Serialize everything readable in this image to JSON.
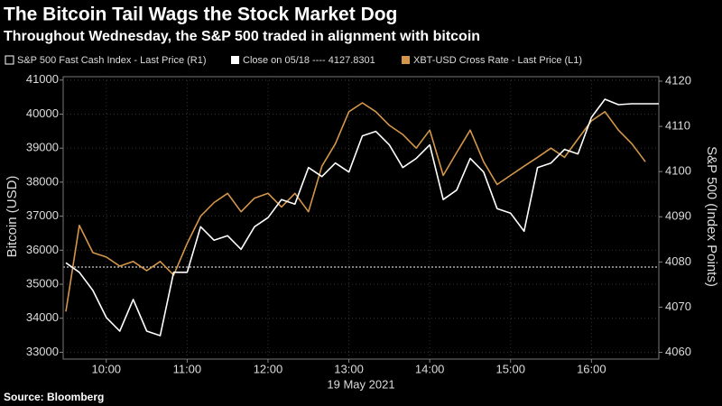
{
  "chart_data": {
    "type": "line",
    "title": "The Bitcoin Tail Wags the Stock Market Dog",
    "subtitle": "Throughout Wednesday, the S&P 500 traded in alignment with bitcoin",
    "source": "Source: Bloomberg",
    "legend_note": "Close on 05/18 ---- 4127.8301",
    "xlabel": "19 May 2021",
    "ylabel": "Bitcoin (USD)",
    "y2label": "S&P 500 (Index Points)",
    "grid": true,
    "xlim": [
      "09:28",
      "16:50"
    ],
    "xticks": [
      "10:00",
      "11:00",
      "12:00",
      "13:00",
      "14:00",
      "15:00",
      "16:00"
    ],
    "ylim": [
      32800,
      41100
    ],
    "yticks": [
      33000,
      34000,
      35000,
      36000,
      37000,
      38000,
      39000,
      40000,
      41000
    ],
    "y2lim": [
      4058.5,
      4121
    ],
    "y2ticks": [
      4060,
      4070,
      4080,
      4090,
      4100,
      4110,
      4120
    ],
    "x": [
      "09:30",
      "09:40",
      "09:50",
      "10:00",
      "10:10",
      "10:20",
      "10:30",
      "10:40",
      "10:50",
      "11:00",
      "11:10",
      "11:20",
      "11:30",
      "11:40",
      "11:50",
      "12:00",
      "12:10",
      "12:20",
      "12:30",
      "12:40",
      "12:50",
      "13:00",
      "13:10",
      "13:20",
      "13:30",
      "13:40",
      "13:50",
      "14:00",
      "14:10",
      "14:20",
      "14:30",
      "14:40",
      "14:50",
      "15:00",
      "15:10",
      "15:20",
      "15:30",
      "15:40",
      "15:50",
      "16:00",
      "16:10",
      "16:20",
      "16:30",
      "16:40",
      "16:50"
    ],
    "series": [
      {
        "name": "S&P 500 Fast Cash Index - Last Price (R1)",
        "color": "#ffffff",
        "axis": "y2",
        "values": [
          4079.8,
          4077.7,
          4073.7,
          4067.7,
          4064.7,
          4071.7,
          4064.7,
          4063.7,
          4077.7,
          4077.7,
          4087.8,
          4084.8,
          4085.8,
          4082.8,
          4087.8,
          4089.8,
          4093.8,
          4092.8,
          4100.9,
          4098.9,
          4101.9,
          4099.9,
          4107.9,
          4108.9,
          4105.9,
          4100.9,
          4102.9,
          4105.9,
          4093.8,
          4095.9,
          4102.9,
          4099.9,
          4091.8,
          4090.8,
          4086.8,
          4100.9,
          4101.9,
          4104.9,
          4103.9,
          4112.0,
          4116.0,
          4114.8,
          4115.0,
          4115.0,
          4115.0
        ]
      },
      {
        "name": "XBT-USD Cross Rate - Last Price (L1)",
        "color": "#d4964a",
        "axis": "y",
        "values": [
          34200,
          36730,
          35930,
          35800,
          35530,
          35670,
          35400,
          35670,
          35270,
          36200,
          37000,
          37400,
          37670,
          37130,
          37530,
          37670,
          37270,
          37670,
          37130,
          38470,
          39130,
          40070,
          40330,
          40070,
          39670,
          39400,
          39000,
          39530,
          38200,
          38870,
          39530,
          38600,
          37930,
          38200,
          38470,
          38730,
          39000,
          38730,
          39270,
          39800,
          40070,
          39530,
          39130,
          38600,
          null
        ]
      }
    ]
  }
}
